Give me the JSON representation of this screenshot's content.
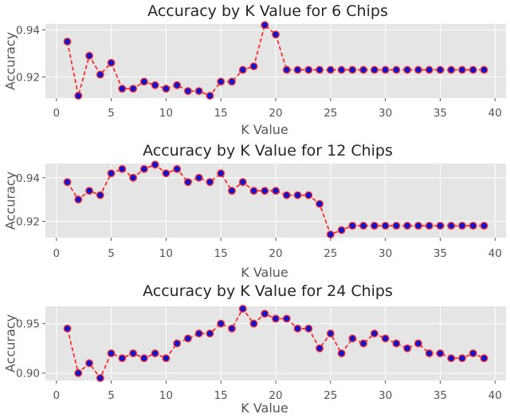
{
  "chart_data": [
    {
      "type": "line",
      "title": "Accuracy by K Value for 6 Chips",
      "xlabel": "K Value",
      "ylabel": "Accuracy",
      "xlim": [
        -1,
        41
      ],
      "ylim": [
        0.911,
        0.9425
      ],
      "xticks": [
        0,
        5,
        10,
        15,
        20,
        25,
        30,
        35,
        40
      ],
      "yticks": [
        0.92,
        0.94
      ],
      "ytick_labels": [
        "0.92",
        "0.94"
      ],
      "grid": true,
      "x": [
        1,
        2,
        3,
        4,
        5,
        6,
        7,
        8,
        9,
        10,
        11,
        12,
        13,
        14,
        15,
        16,
        17,
        18,
        19,
        20,
        21,
        22,
        23,
        24,
        25,
        26,
        27,
        28,
        29,
        30,
        31,
        32,
        33,
        34,
        35,
        36,
        37,
        38,
        39
      ],
      "values": [
        0.935,
        0.912,
        0.929,
        0.921,
        0.926,
        0.915,
        0.915,
        0.918,
        0.9165,
        0.915,
        0.9165,
        0.914,
        0.914,
        0.912,
        0.918,
        0.918,
        0.923,
        0.9245,
        0.942,
        0.938,
        0.923,
        0.923,
        0.923,
        0.923,
        0.923,
        0.923,
        0.923,
        0.923,
        0.923,
        0.923,
        0.923,
        0.923,
        0.923,
        0.923,
        0.923,
        0.923,
        0.923,
        0.923,
        0.923
      ],
      "line_color": "#ff1a1a",
      "marker_color": "#1515c8"
    },
    {
      "type": "line",
      "title": "Accuracy by K Value for 12 Chips",
      "xlabel": "K Value",
      "ylabel": "Accuracy",
      "xlim": [
        -1,
        41
      ],
      "ylim": [
        0.9125,
        0.9465
      ],
      "xticks": [
        0,
        5,
        10,
        15,
        20,
        25,
        30,
        35,
        40
      ],
      "yticks": [
        0.92,
        0.94
      ],
      "ytick_labels": [
        "0.92",
        "0.94"
      ],
      "grid": true,
      "x": [
        1,
        2,
        3,
        4,
        5,
        6,
        7,
        8,
        9,
        10,
        11,
        12,
        13,
        14,
        15,
        16,
        17,
        18,
        19,
        20,
        21,
        22,
        23,
        24,
        25,
        26,
        27,
        28,
        29,
        30,
        31,
        32,
        33,
        34,
        35,
        36,
        37,
        38,
        39
      ],
      "values": [
        0.938,
        0.93,
        0.934,
        0.932,
        0.942,
        0.944,
        0.94,
        0.944,
        0.946,
        0.942,
        0.944,
        0.938,
        0.94,
        0.938,
        0.942,
        0.934,
        0.938,
        0.934,
        0.934,
        0.934,
        0.932,
        0.932,
        0.932,
        0.928,
        0.914,
        0.916,
        0.918,
        0.918,
        0.918,
        0.918,
        0.918,
        0.918,
        0.918,
        0.918,
        0.918,
        0.918,
        0.918,
        0.918,
        0.918
      ],
      "line_color": "#ff1a1a",
      "marker_color": "#1515c8"
    },
    {
      "type": "line",
      "title": "Accuracy by K Value for 24 Chips",
      "xlabel": "K Value",
      "ylabel": "Accuracy",
      "xlim": [
        -1,
        41
      ],
      "ylim": [
        0.8925,
        0.9675
      ],
      "xticks": [
        0,
        5,
        10,
        15,
        20,
        25,
        30,
        35,
        40
      ],
      "yticks": [
        0.9,
        0.95
      ],
      "ytick_labels": [
        "0.90",
        "0.95"
      ],
      "grid": true,
      "x": [
        1,
        2,
        3,
        4,
        5,
        6,
        7,
        8,
        9,
        10,
        11,
        12,
        13,
        14,
        15,
        16,
        17,
        18,
        19,
        20,
        21,
        22,
        23,
        24,
        25,
        26,
        27,
        28,
        29,
        30,
        31,
        32,
        33,
        34,
        35,
        36,
        37,
        38,
        39
      ],
      "values": [
        0.945,
        0.9,
        0.91,
        0.895,
        0.92,
        0.915,
        0.92,
        0.915,
        0.92,
        0.915,
        0.93,
        0.935,
        0.94,
        0.94,
        0.95,
        0.945,
        0.965,
        0.95,
        0.96,
        0.955,
        0.955,
        0.945,
        0.945,
        0.925,
        0.94,
        0.92,
        0.935,
        0.93,
        0.94,
        0.935,
        0.93,
        0.925,
        0.93,
        0.92,
        0.92,
        0.915,
        0.915,
        0.92,
        0.915
      ],
      "line_color": "#ff1a1a",
      "marker_color": "#1515c8"
    }
  ]
}
